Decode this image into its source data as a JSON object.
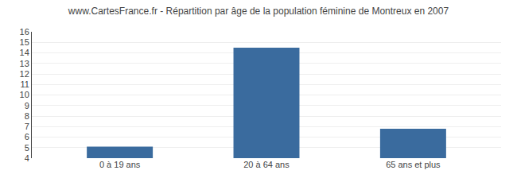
{
  "chart_data": {
    "type": "bar",
    "title": "www.CartesFrance.fr - Répartition par âge de la population féminine de Montreux en 2007",
    "categories": [
      "0 à 19 ans",
      "20 à 64 ans",
      "65 ans et plus"
    ],
    "values": [
      5.1,
      14.5,
      6.8
    ],
    "color": "#3a6b9e",
    "ylim": [
      4,
      16
    ],
    "yticks": [
      4,
      5,
      6,
      7,
      8,
      9,
      10,
      11,
      12,
      13,
      14,
      15,
      16
    ],
    "grid": true
  }
}
